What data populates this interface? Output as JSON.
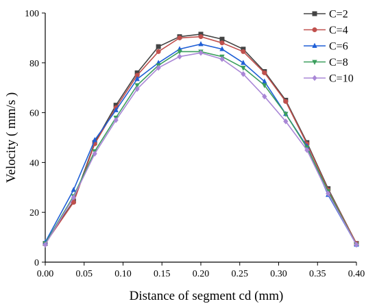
{
  "chart_data": {
    "type": "line",
    "xlabel": "Distance of segment cd (mm)",
    "ylabel": "Velocity ( mm/s )",
    "xlim": [
      0,
      0.4
    ],
    "ylim": [
      0,
      100
    ],
    "x_ticks": [
      "0.00",
      "0.05",
      "0.10",
      "0.15",
      "0.20",
      "0.25",
      "0.30",
      "0.35",
      "0.40"
    ],
    "y_ticks": [
      "0",
      "20",
      "40",
      "60",
      "80",
      "100"
    ],
    "grid": false,
    "legend_position": "top-right",
    "x": [
      0.0,
      0.0364,
      0.0636,
      0.0909,
      0.1182,
      0.1455,
      0.1727,
      0.2,
      0.2273,
      0.2545,
      0.2818,
      0.3091,
      0.3364,
      0.3636,
      0.4
    ],
    "series": [
      {
        "name": "C=2",
        "color": "#444444",
        "marker": "square",
        "values": [
          7.5,
          24.5,
          48.0,
          63.0,
          76.0,
          86.5,
          90.5,
          91.5,
          89.5,
          85.5,
          76.5,
          65.0,
          48.0,
          29.5,
          7.5
        ]
      },
      {
        "name": "C=4",
        "color": "#c0504d",
        "marker": "circle",
        "values": [
          7.5,
          24.0,
          47.5,
          62.0,
          75.0,
          84.5,
          90.0,
          90.5,
          88.0,
          84.5,
          76.0,
          64.5,
          47.5,
          29.0,
          7.5
        ]
      },
      {
        "name": "C=6",
        "color": "#1f5fd6",
        "marker": "triangle-up",
        "values": [
          8.0,
          29.0,
          49.0,
          61.0,
          73.5,
          80.0,
          85.5,
          87.5,
          85.5,
          80.0,
          72.5,
          59.5,
          46.5,
          27.0,
          7.0
        ]
      },
      {
        "name": "C=8",
        "color": "#3a9e5c",
        "marker": "triangle-down",
        "values": [
          7.5,
          26.5,
          44.5,
          58.0,
          71.0,
          79.0,
          84.5,
          84.5,
          82.5,
          78.0,
          71.0,
          59.5,
          46.0,
          28.5,
          7.0
        ]
      },
      {
        "name": "C=10",
        "color": "#a987d6",
        "marker": "diamond",
        "values": [
          7.0,
          26.0,
          43.5,
          57.0,
          69.5,
          78.0,
          82.5,
          84.0,
          81.5,
          75.5,
          66.5,
          56.5,
          45.0,
          27.5,
          7.0
        ]
      }
    ]
  }
}
